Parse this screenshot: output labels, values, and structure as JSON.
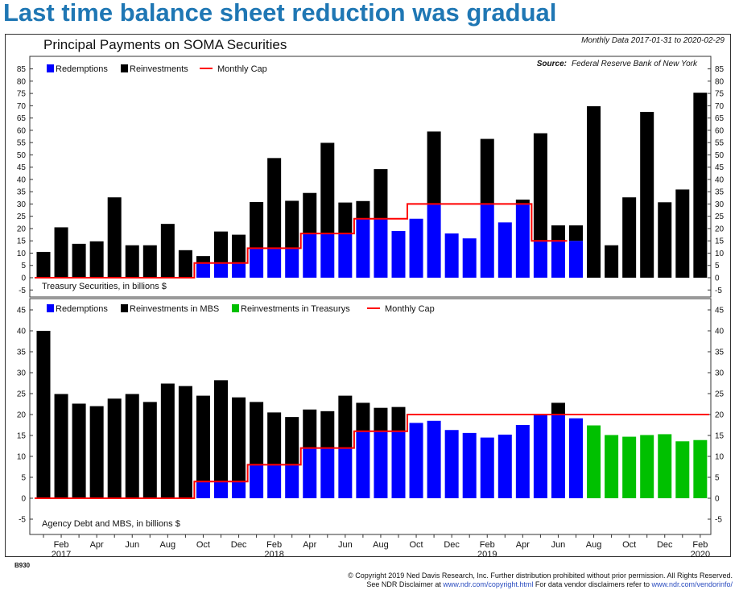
{
  "headline": "Last time balance sheet reduction was gradual",
  "chart_title": "Principal Payments on SOMA Securities",
  "period_note": "Monthly Data 2017-01-31 to 2020-02-29",
  "source_label": "Source:",
  "source_text": "Federal Reserve Bank of New York",
  "chart_code": "B930",
  "footer": {
    "line1": "© Copyright 2019 Ned Davis Research, Inc. Further distribution prohibited without prior permission. All Rights Reserved.",
    "line2a": "See NDR Disclaimer at ",
    "link1": "www.ndr.com/copyright.html",
    "line2b": "   For data vendor disclaimers refer to ",
    "link2": "www.ndr.com/vendorinfo/"
  },
  "colors": {
    "redemptions": "#0000ff",
    "reinvestments": "#000000",
    "reinvestments_treasurys": "#00c000",
    "cap": "#ff0000",
    "headline": "#1f77b4"
  },
  "x_axis": {
    "month_labels": [
      {
        "i": 1,
        "label": "Feb"
      },
      {
        "i": 3,
        "label": "Apr"
      },
      {
        "i": 5,
        "label": "Jun"
      },
      {
        "i": 7,
        "label": "Aug"
      },
      {
        "i": 9,
        "label": "Oct"
      },
      {
        "i": 11,
        "label": "Dec"
      },
      {
        "i": 13,
        "label": "Feb"
      },
      {
        "i": 15,
        "label": "Apr"
      },
      {
        "i": 17,
        "label": "Jun"
      },
      {
        "i": 19,
        "label": "Aug"
      },
      {
        "i": 21,
        "label": "Oct"
      },
      {
        "i": 23,
        "label": "Dec"
      },
      {
        "i": 25,
        "label": "Feb"
      },
      {
        "i": 27,
        "label": "Apr"
      },
      {
        "i": 29,
        "label": "Jun"
      },
      {
        "i": 31,
        "label": "Aug"
      },
      {
        "i": 33,
        "label": "Oct"
      },
      {
        "i": 35,
        "label": "Dec"
      },
      {
        "i": 37,
        "label": "Feb"
      }
    ],
    "year_labels": [
      {
        "i": 1,
        "label": "2017"
      },
      {
        "i": 13,
        "label": "2018"
      },
      {
        "i": 25,
        "label": "2019"
      },
      {
        "i": 37,
        "label": "2020"
      }
    ]
  },
  "chart_data": [
    {
      "type": "bar",
      "stacked": true,
      "panel_label": "Treasury Securities, in billions $",
      "x": [
        "2017-01",
        "2017-02",
        "2017-03",
        "2017-04",
        "2017-05",
        "2017-06",
        "2017-07",
        "2017-08",
        "2017-09",
        "2017-10",
        "2017-11",
        "2017-12",
        "2018-01",
        "2018-02",
        "2018-03",
        "2018-04",
        "2018-05",
        "2018-06",
        "2018-07",
        "2018-08",
        "2018-09",
        "2018-10",
        "2018-11",
        "2018-12",
        "2019-01",
        "2019-02",
        "2019-03",
        "2019-04",
        "2019-05",
        "2019-06",
        "2019-07",
        "2019-08",
        "2019-09",
        "2019-10",
        "2019-11",
        "2019-12",
        "2020-01",
        "2020-02"
      ],
      "ylim": [
        -5,
        85
      ],
      "yticks": [
        -5,
        0,
        5,
        10,
        15,
        20,
        25,
        30,
        35,
        40,
        45,
        50,
        55,
        60,
        65,
        70,
        75,
        80,
        85
      ],
      "legend": [
        "Redemptions",
        "Reinvestments",
        "Monthly Cap"
      ],
      "series": [
        {
          "name": "Redemptions",
          "color": "#0000ff",
          "values": [
            0,
            0,
            0,
            0,
            0,
            0,
            0,
            0,
            0,
            6,
            6,
            6,
            12,
            12,
            12,
            18,
            18,
            18,
            24,
            24,
            19,
            24,
            30,
            18,
            16,
            30,
            22.5,
            30,
            15,
            15,
            15,
            0,
            0,
            0,
            0,
            0,
            0,
            0
          ]
        },
        {
          "name": "Reinvestments",
          "color": "#000000",
          "values": [
            10.5,
            20.5,
            13.8,
            14.8,
            32.7,
            13.2,
            13.2,
            21.9,
            11.2,
            2.8,
            12.8,
            11.5,
            18.8,
            36.7,
            19.3,
            16.5,
            36.9,
            12.6,
            7.2,
            20.2,
            0,
            0,
            29.5,
            0,
            0,
            26.5,
            0,
            1.8,
            43.8,
            6.3,
            6.3,
            69.8,
            13.2,
            32.7,
            67.5,
            30.7,
            35.9,
            75.3
          ]
        }
      ],
      "cap": {
        "name": "Monthly Cap",
        "color": "#ff0000",
        "start": 0.5,
        "end": 29.5,
        "values": [
          0,
          0,
          0,
          0,
          0,
          0,
          0,
          0,
          0,
          6,
          6,
          6,
          12,
          12,
          12,
          18,
          18,
          18,
          24,
          24,
          24,
          30,
          30,
          30,
          30,
          30,
          30,
          30,
          15,
          15
        ]
      }
    },
    {
      "type": "bar",
      "stacked": true,
      "panel_label": "Agency Debt and MBS, in billions $",
      "x": [
        "2017-01",
        "2017-02",
        "2017-03",
        "2017-04",
        "2017-05",
        "2017-06",
        "2017-07",
        "2017-08",
        "2017-09",
        "2017-10",
        "2017-11",
        "2017-12",
        "2018-01",
        "2018-02",
        "2018-03",
        "2018-04",
        "2018-05",
        "2018-06",
        "2018-07",
        "2018-08",
        "2018-09",
        "2018-10",
        "2018-11",
        "2018-12",
        "2019-01",
        "2019-02",
        "2019-03",
        "2019-04",
        "2019-05",
        "2019-06",
        "2019-07",
        "2019-08",
        "2019-09",
        "2019-10",
        "2019-11",
        "2019-12",
        "2020-01",
        "2020-02"
      ],
      "ylim": [
        -5,
        45
      ],
      "yticks": [
        -5,
        0,
        5,
        10,
        15,
        20,
        25,
        30,
        35,
        40,
        45
      ],
      "legend": [
        "Redemptions",
        "Reinvestments in MBS",
        "Reinvestments in Treasurys",
        "Monthly Cap"
      ],
      "series": [
        {
          "name": "Redemptions",
          "color": "#0000ff",
          "values": [
            0,
            0,
            0,
            0,
            0,
            0,
            0,
            0,
            0,
            4,
            4,
            4,
            8,
            8,
            8,
            12,
            12,
            12,
            16,
            16,
            16,
            18,
            18.5,
            16.3,
            15.6,
            14.5,
            15.2,
            17.5,
            20,
            20,
            19.1,
            0,
            0,
            0,
            0,
            0,
            0,
            0
          ]
        },
        {
          "name": "Reinvestments in MBS",
          "color": "#000000",
          "values": [
            40,
            24.9,
            22.6,
            22,
            23.8,
            24.9,
            23,
            27.4,
            26.8,
            20.5,
            24.2,
            20.1,
            15,
            12.5,
            11.4,
            9.2,
            8.8,
            12.5,
            6.8,
            5.6,
            5.8,
            0,
            0,
            0,
            0,
            0,
            0,
            0,
            0,
            2.8,
            0,
            0,
            0,
            0,
            0,
            0,
            0,
            0
          ]
        },
        {
          "name": "Reinvestments in Treasurys",
          "color": "#00c000",
          "values": [
            0,
            0,
            0,
            0,
            0,
            0,
            0,
            0,
            0,
            0,
            0,
            0,
            0,
            0,
            0,
            0,
            0,
            0,
            0,
            0,
            0,
            0,
            0,
            0,
            0,
            0,
            0,
            0,
            0,
            0,
            0,
            17.4,
            15.1,
            14.7,
            15.1,
            15.3,
            13.6,
            13.9
          ]
        }
      ],
      "cap": {
        "name": "Monthly Cap",
        "color": "#ff0000",
        "start": 0.5,
        "end": 37.5,
        "values": [
          0,
          0,
          0,
          0,
          0,
          0,
          0,
          0,
          0,
          4,
          4,
          4,
          8,
          8,
          8,
          12,
          12,
          12,
          16,
          16,
          16,
          20,
          20,
          20,
          20,
          20,
          20,
          20,
          20,
          20,
          20,
          20,
          20,
          20,
          20,
          20,
          20,
          20
        ]
      }
    }
  ]
}
